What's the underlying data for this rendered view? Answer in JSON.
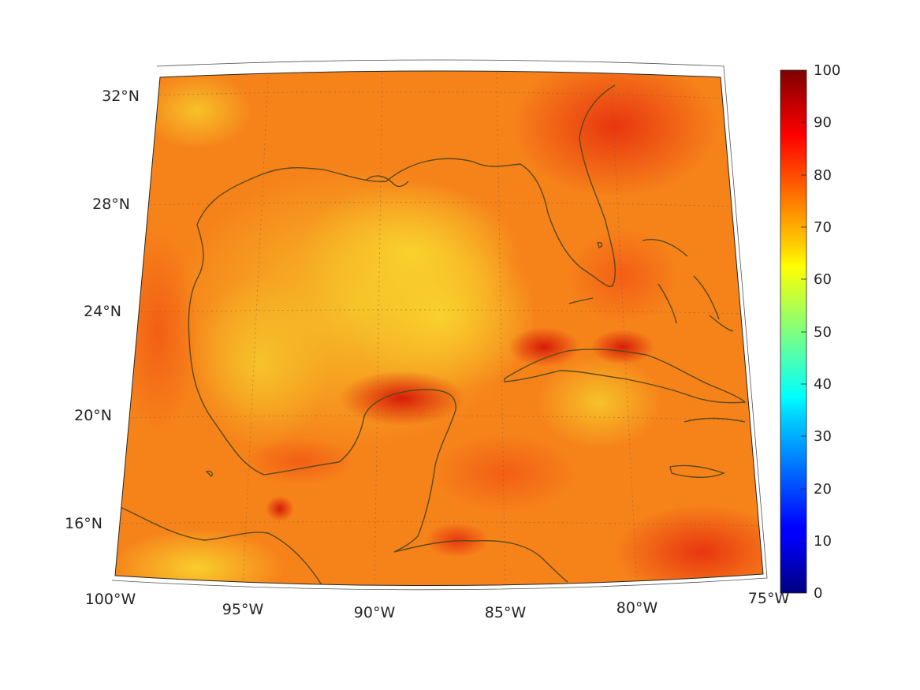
{
  "map": {
    "projection": "conic",
    "lon_range": [
      -100,
      -75
    ],
    "lat_range": [
      14,
      33
    ],
    "colormap": "jet",
    "field_description_visible": false,
    "lat_ticks": [
      {
        "value": 32,
        "label": "32°N"
      },
      {
        "value": 28,
        "label": "28°N"
      },
      {
        "value": 24,
        "label": "24°N"
      },
      {
        "value": 20,
        "label": "20°N"
      },
      {
        "value": 16,
        "label": "16°N"
      }
    ],
    "lon_ticks": [
      {
        "value": -100,
        "label": "100°W"
      },
      {
        "value": -95,
        "label": "95°W"
      },
      {
        "value": -90,
        "label": "90°W"
      },
      {
        "value": -85,
        "label": "85°W"
      },
      {
        "value": -80,
        "label": "80°W"
      },
      {
        "value": -75,
        "label": "75°W"
      }
    ],
    "coastline_color": "#5a4a1a",
    "grid": "dotted"
  },
  "colorbar": {
    "min": 0,
    "max": 100,
    "ticks": [
      "0",
      "10",
      "20",
      "30",
      "40",
      "50",
      "60",
      "70",
      "80",
      "90",
      "100"
    ]
  }
}
